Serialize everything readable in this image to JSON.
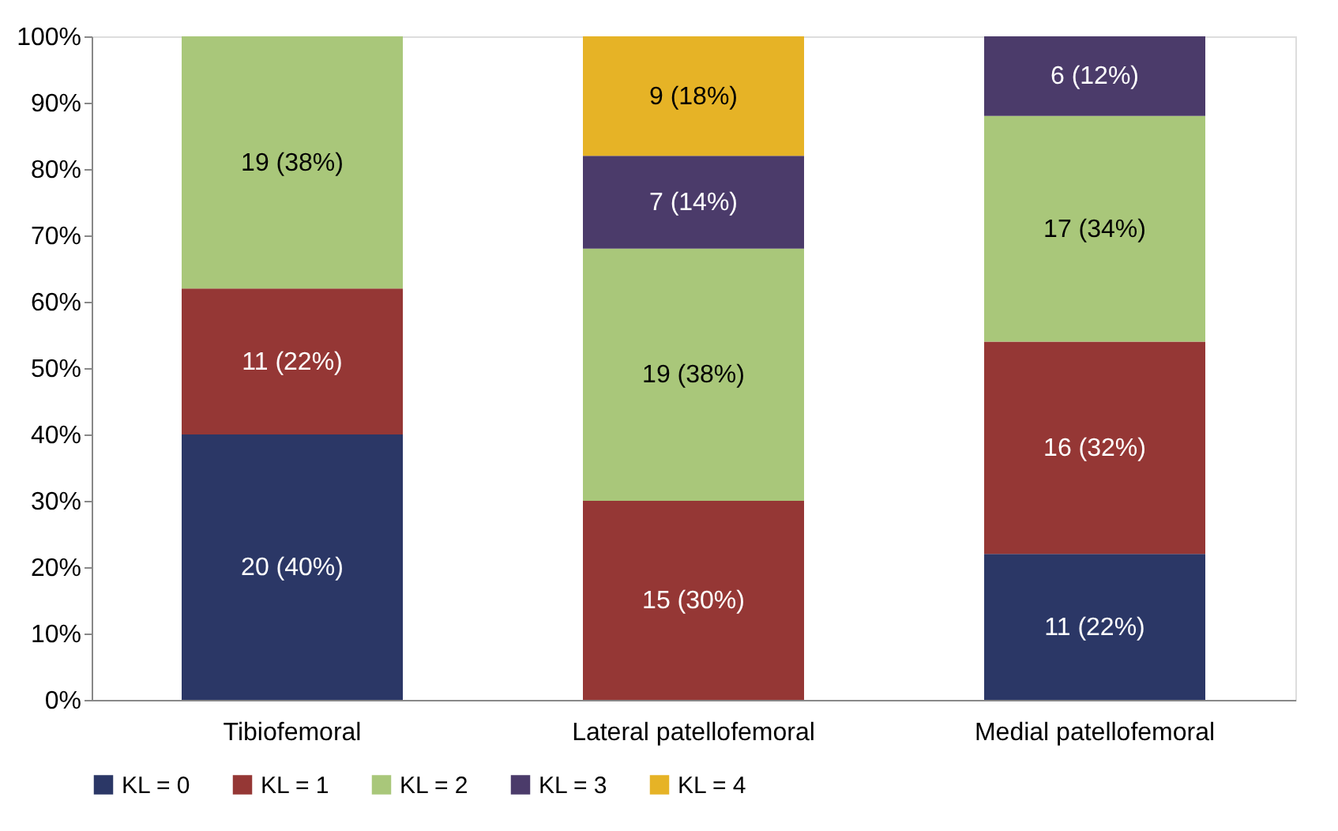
{
  "chart_data": {
    "type": "bar",
    "stacked": true,
    "categories": [
      "Tibiofemoral",
      "Lateral patellofemoral",
      "Medial patellofemoral"
    ],
    "series": [
      {
        "name": "KL = 0",
        "color": "#2b3766",
        "values": [
          40,
          null,
          22
        ],
        "value_labels": [
          "20 (40%)",
          null,
          "11 (22%)"
        ]
      },
      {
        "name": "KL = 1",
        "color": "#953735",
        "values": [
          22,
          30,
          32
        ],
        "value_labels": [
          "11 (22%)",
          "15 (30%)",
          "16 (32%)"
        ]
      },
      {
        "name": "KL = 2",
        "color": "#a9c77a",
        "values": [
          38,
          38,
          34
        ],
        "value_labels": [
          "19 (38%)",
          "19 (38%)",
          "17 (34%)"
        ]
      },
      {
        "name": "KL = 3",
        "color": "#4b3b6a",
        "values": [
          null,
          14,
          12
        ],
        "value_labels": [
          null,
          "7 (14%)",
          "6 (12%)"
        ]
      },
      {
        "name": "KL = 4",
        "color": "#e6b326",
        "values": [
          null,
          18,
          null
        ],
        "value_labels": [
          null,
          "9 (18%)",
          null
        ]
      }
    ],
    "ylim": [
      0,
      100
    ],
    "yticks": [
      {
        "value": 0,
        "label": "0%"
      },
      {
        "value": 10,
        "label": "10%"
      },
      {
        "value": 20,
        "label": "20%"
      },
      {
        "value": 30,
        "label": "30%"
      },
      {
        "value": 40,
        "label": "40%"
      },
      {
        "value": 50,
        "label": "50%"
      },
      {
        "value": 60,
        "label": "60%"
      },
      {
        "value": 70,
        "label": "70%"
      },
      {
        "value": 80,
        "label": "80%"
      },
      {
        "value": 90,
        "label": "90%"
      },
      {
        "value": 100,
        "label": "100%"
      }
    ],
    "grid": false,
    "legend": "bottom"
  }
}
